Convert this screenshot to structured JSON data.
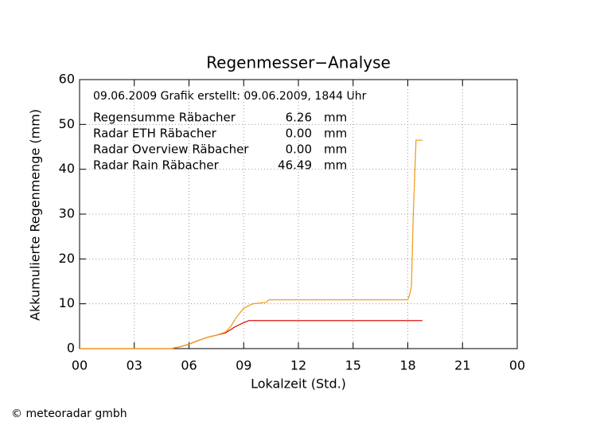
{
  "chart_data": {
    "type": "line",
    "title": "Regenmesser−Analyse",
    "subtitle": "09.06.2009   Grafik erstellt: 09.06.2009, 1844 Uhr",
    "x_label": "Lokalzeit (Std.)",
    "y_label": "Akkumulierte Regenmenge (mm)",
    "xlim": [
      0,
      24
    ],
    "xticks": [
      {
        "value": 0,
        "label": "00"
      },
      {
        "value": 3,
        "label": "03"
      },
      {
        "value": 6,
        "label": "06"
      },
      {
        "value": 9,
        "label": "09"
      },
      12,
      15,
      18,
      21,
      {
        "value": 24,
        "label": "00"
      }
    ],
    "ylim": [
      0,
      60
    ],
    "yticks": [
      0,
      10,
      20,
      30,
      40,
      50,
      60
    ],
    "grid": true,
    "series": [
      {
        "name": "Regensumme Räbacher",
        "color": "#e01010",
        "total": {
          "value": 6.26,
          "label": "6.26"
        },
        "unit": "mm",
        "x": [
          0,
          5,
          5.5,
          6,
          6.5,
          7,
          7.5,
          8,
          8.5,
          9,
          9.3,
          18.8
        ],
        "values": [
          0,
          0,
          0.4,
          1,
          1.8,
          2.5,
          3,
          3.5,
          4.8,
          5.8,
          6.26,
          6.26
        ]
      },
      {
        "name": "Radar ETH Räbacher",
        "color": "#20a020",
        "total": {
          "value": 0,
          "label": "0.00"
        },
        "unit": "mm"
      },
      {
        "name": "Radar Overview Räbacher",
        "color": "#1010e0",
        "total": {
          "value": 0,
          "label": "0.00"
        },
        "unit": "mm"
      },
      {
        "name": "Radar Rain Räbacher",
        "color": "#f0a020",
        "total": {
          "value": 46.49,
          "label": "46.49"
        },
        "unit": "mm",
        "x": [
          0,
          5,
          5.5,
          6,
          6.5,
          7,
          7.5,
          8,
          8.3,
          8.6,
          9,
          9.5,
          10.2,
          10.4,
          18,
          18.1,
          18.2,
          18.3,
          18.45,
          18.8
        ],
        "values": [
          0,
          0,
          0.4,
          1,
          1.8,
          2.5,
          3,
          3.7,
          5,
          7,
          9,
          10,
          10.3,
          10.9,
          10.9,
          12,
          14,
          30,
          46.49,
          46.49
        ]
      }
    ],
    "footer": "© meteoradar gmbh"
  }
}
